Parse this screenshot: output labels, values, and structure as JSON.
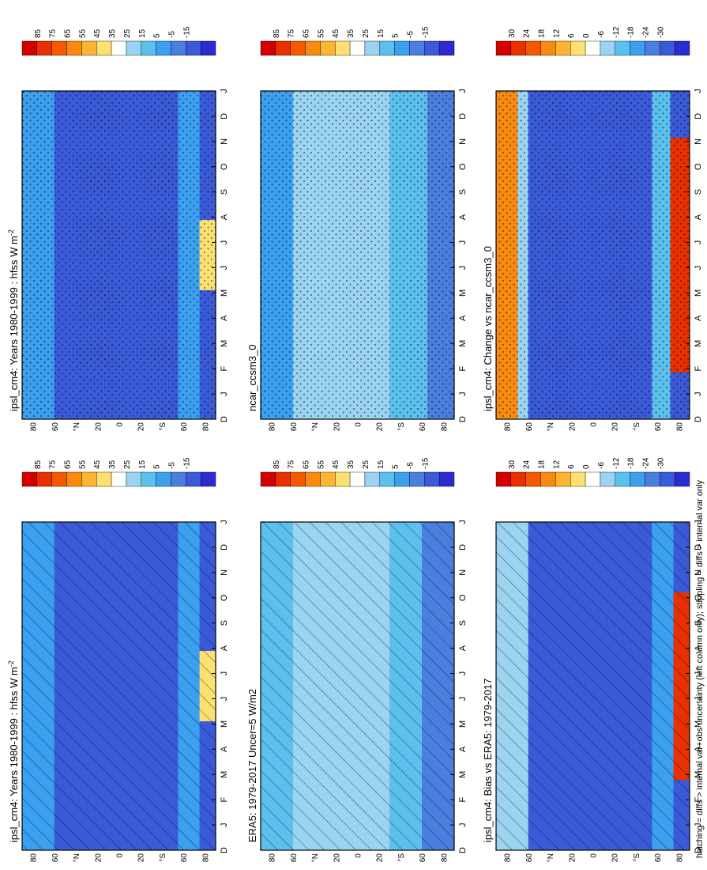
{
  "figure": {
    "footnote": "hatching = diffs > internal var+obs uncertainty (left column only); stippling = diffs > internal var only"
  },
  "colors": {
    "scale_abs": [
      "#d40000",
      "#e83000",
      "#f35a00",
      "#f88a10",
      "#fcb530",
      "#fde070",
      "#ffffff",
      "#9ad4f0",
      "#5cc0ee",
      "#3ba0f0",
      "#4a7fe0",
      "#3a5ad8",
      "#2c2ad2"
    ],
    "scale_diff": [
      "#d40000",
      "#e83000",
      "#f35a00",
      "#f88a10",
      "#fcb530",
      "#fde070",
      "#ffffff",
      "#9ad4f0",
      "#5cc0ee",
      "#3ba0f0",
      "#4a7fe0",
      "#3a5ad8",
      "#2c2ad2"
    ],
    "frame": "#000000"
  },
  "chart_data": [
    {
      "id": "ipsl-left",
      "type": "heatmap",
      "title": "ipsl_cm4: Years 1980-1999 : hfss W m",
      "title_sup": "-2",
      "months": [
        "D",
        "J",
        "F",
        "M",
        "A",
        "M",
        "J",
        "J",
        "A",
        "S",
        "O",
        "N",
        "D",
        "J"
      ],
      "lat_labels": [
        "80",
        "60",
        "°N",
        "20",
        "0",
        "20",
        "°S",
        "60",
        "80"
      ],
      "colorbar_labels": [
        "85",
        "75",
        "65",
        "55",
        "45",
        "35",
        "25",
        "15",
        "5",
        "-5",
        "-15"
      ],
      "overlay": "hatching",
      "zones": [
        {
          "lat_range": [
            60,
            90
          ],
          "value": 5
        },
        {
          "lat_range": [
            -55,
            60
          ],
          "value": -15
        },
        {
          "lat_range": [
            -75,
            -55
          ],
          "value": 5
        },
        {
          "lat_range": [
            -90,
            -75
          ],
          "value": 45,
          "months": "JJA"
        }
      ]
    },
    {
      "id": "ipsl-right",
      "type": "heatmap",
      "title": "ipsl_cm4: Years 1980-1999 : hfss W m",
      "title_sup": "-2",
      "months": [
        "D",
        "J",
        "F",
        "M",
        "A",
        "M",
        "J",
        "J",
        "A",
        "S",
        "O",
        "N",
        "D",
        "J"
      ],
      "lat_labels": [
        "80",
        "60",
        "°N",
        "20",
        "0",
        "20",
        "°S",
        "60",
        "80"
      ],
      "colorbar_labels": [
        "85",
        "75",
        "65",
        "55",
        "45",
        "35",
        "25",
        "15",
        "5",
        "-5",
        "-15"
      ],
      "overlay": "stippling",
      "zones": [
        {
          "lat_range": [
            60,
            90
          ],
          "value": 5
        },
        {
          "lat_range": [
            -55,
            60
          ],
          "value": -15
        },
        {
          "lat_range": [
            -75,
            -55
          ],
          "value": 5
        },
        {
          "lat_range": [
            -90,
            -75
          ],
          "value": 45,
          "months": "JJA"
        }
      ]
    },
    {
      "id": "era5",
      "type": "heatmap",
      "title": "ERA5: 1979-2017 Uncer=5 W/m2",
      "months": [
        "D",
        "J",
        "F",
        "M",
        "A",
        "M",
        "J",
        "J",
        "A",
        "S",
        "O",
        "N",
        "D",
        "J"
      ],
      "lat_labels": [
        "80",
        "60",
        "°N",
        "20",
        "0",
        "20",
        "°S",
        "60",
        "80"
      ],
      "colorbar_labels": [
        "85",
        "75",
        "65",
        "55",
        "45",
        "35",
        "25",
        "15",
        "5",
        "-5",
        "-15"
      ],
      "overlay": "hatching",
      "zones": [
        {
          "lat_range": [
            60,
            90
          ],
          "value": 15
        },
        {
          "lat_range": [
            -30,
            60
          ],
          "value": 30
        },
        {
          "lat_range": [
            -60,
            -30
          ],
          "value": 15
        },
        {
          "lat_range": [
            -90,
            -60
          ],
          "value": -5
        }
      ]
    },
    {
      "id": "ncar",
      "type": "heatmap",
      "title": "ncar_ccsm3_0",
      "months": [
        "D",
        "J",
        "F",
        "M",
        "A",
        "M",
        "J",
        "J",
        "A",
        "S",
        "O",
        "N",
        "D",
        "J"
      ],
      "lat_labels": [
        "80",
        "60",
        "°N",
        "20",
        "0",
        "20",
        "°S",
        "60",
        "80"
      ],
      "colorbar_labels": [
        "85",
        "75",
        "65",
        "55",
        "45",
        "35",
        "25",
        "15",
        "5",
        "-5",
        "-15"
      ],
      "overlay": "stippling",
      "zones": [
        {
          "lat_range": [
            60,
            90
          ],
          "value": 10
        },
        {
          "lat_range": [
            -30,
            60
          ],
          "value": 25
        },
        {
          "lat_range": [
            -65,
            -30
          ],
          "value": 15
        },
        {
          "lat_range": [
            -90,
            -65
          ],
          "value": -5
        }
      ]
    },
    {
      "id": "bias",
      "type": "heatmap",
      "title": "ipsl_cm4: Bias vs ERA5: 1979-2017",
      "months": [
        "D",
        "J",
        "F",
        "M",
        "A",
        "M",
        "J",
        "J",
        "A",
        "S",
        "O",
        "N",
        "D",
        "J"
      ],
      "lat_labels": [
        "80",
        "60",
        "°N",
        "20",
        "0",
        "20",
        "°S",
        "60",
        "80"
      ],
      "colorbar_labels": [
        "30",
        "24",
        "18",
        "12",
        "6",
        "0",
        "-6",
        "-12",
        "-18",
        "-24",
        "-30"
      ],
      "overlay": "hatching",
      "zones": [
        {
          "lat_range": [
            60,
            90
          ],
          "value": -6
        },
        {
          "lat_range": [
            -55,
            60
          ],
          "value": -30
        },
        {
          "lat_range": [
            -75,
            -55
          ],
          "value": -18
        },
        {
          "lat_range": [
            -90,
            -75
          ],
          "value": 30,
          "months": "MAMJJASO"
        }
      ]
    },
    {
      "id": "change",
      "type": "heatmap",
      "title": "ipsl_cm4: Change vs ncar_ccsm3_0",
      "months": [
        "D",
        "J",
        "F",
        "M",
        "A",
        "M",
        "J",
        "J",
        "A",
        "S",
        "O",
        "N",
        "D",
        "J"
      ],
      "lat_labels": [
        "80",
        "60",
        "°N",
        "20",
        "0",
        "20",
        "°S",
        "60",
        "80"
      ],
      "colorbar_labels": [
        "30",
        "24",
        "18",
        "12",
        "6",
        "0",
        "-6",
        "-12",
        "-18",
        "-24",
        "-30"
      ],
      "overlay": "stippling",
      "zones": [
        {
          "lat_range": [
            70,
            90
          ],
          "value": 18
        },
        {
          "lat_range": [
            60,
            70
          ],
          "value": -6
        },
        {
          "lat_range": [
            -55,
            60
          ],
          "value": -30
        },
        {
          "lat_range": [
            -72,
            -55
          ],
          "value": -12
        },
        {
          "lat_range": [
            -90,
            -72
          ],
          "value": 30,
          "months": "FMAMJJASON"
        }
      ]
    }
  ]
}
